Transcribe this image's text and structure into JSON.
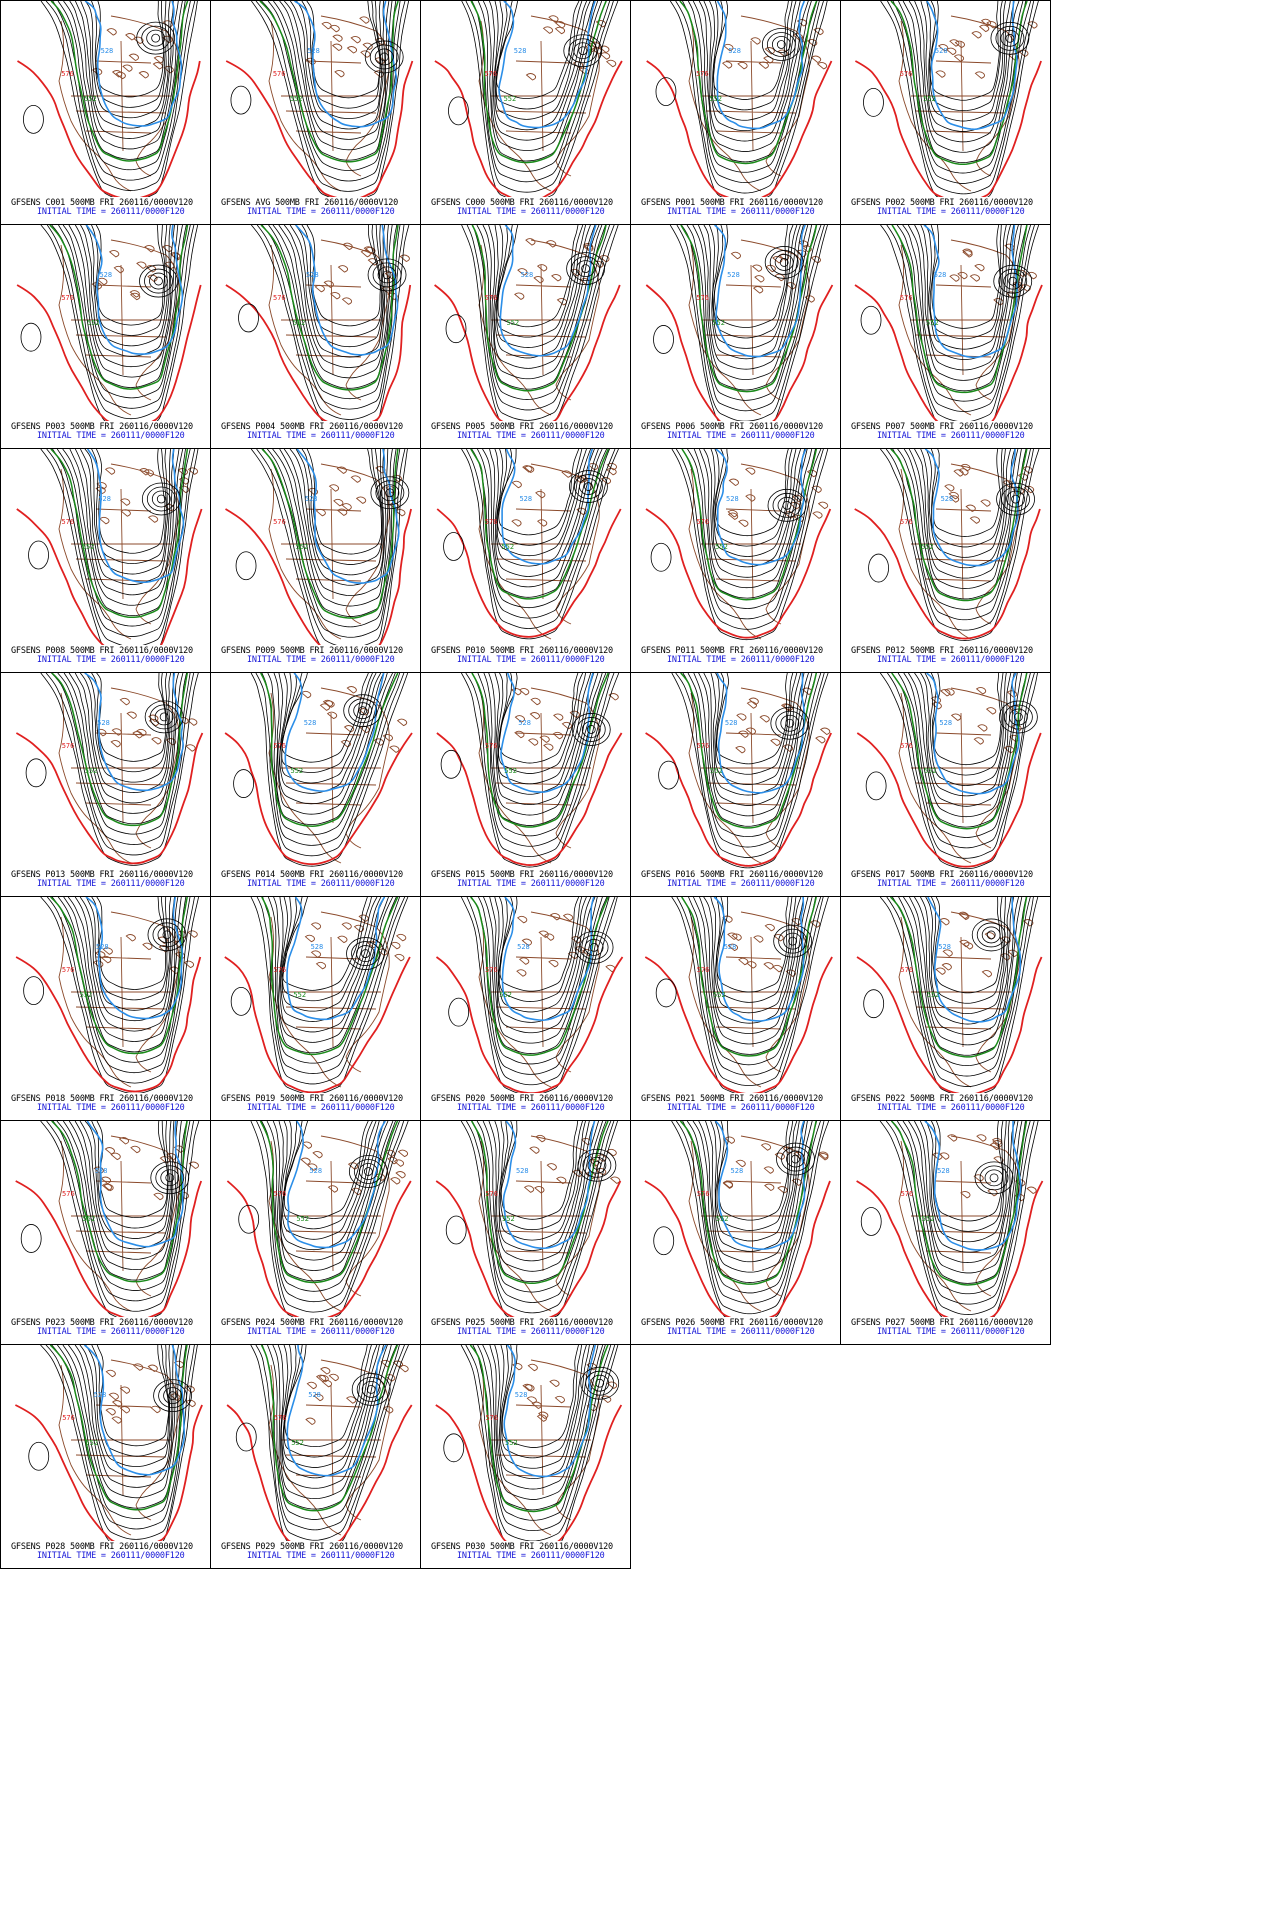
{
  "figure": {
    "columns": 5,
    "rows": 7,
    "init_line": "INITIAL TIME = 260111/0000F120",
    "colors": {
      "height_contours": "#000000",
      "contour_576": "#e02020",
      "contour_552": "#1a8a1a",
      "contour_528": "#2b8ee8",
      "coastlines_borders": "#8b4a2b",
      "caption_line1": "#000000",
      "caption_line2": "#1515d8"
    },
    "contour_labels": [
      "576",
      "552",
      "528"
    ],
    "icons": {
      "map": "map-icon"
    }
  },
  "panels": [
    {
      "id": "C001",
      "title": "GFSENS C001 500MB FRI 260116/0000V120"
    },
    {
      "id": "AVG",
      "title": "GFSENS AVG 500MB FRI 260116/0000V120"
    },
    {
      "id": "C000",
      "title": "GFSENS C000 500MB FRI 260116/0000V120"
    },
    {
      "id": "P001",
      "title": "GFSENS P001 500MB FRI 260116/0000V120"
    },
    {
      "id": "P002",
      "title": "GFSENS P002 500MB FRI 260116/0000V120"
    },
    {
      "id": "P003",
      "title": "GFSENS P003 500MB FRI 260116/0000V120"
    },
    {
      "id": "P004",
      "title": "GFSENS P004 500MB FRI 260116/0000V120"
    },
    {
      "id": "P005",
      "title": "GFSENS P005 500MB FRI 260116/0000V120"
    },
    {
      "id": "P006",
      "title": "GFSENS P006 500MB FRI 260116/0000V120"
    },
    {
      "id": "P007",
      "title": "GFSENS P007 500MB FRI 260116/0000V120"
    },
    {
      "id": "P008",
      "title": "GFSENS P008 500MB FRI 260116/0000V120"
    },
    {
      "id": "P009",
      "title": "GFSENS P009 500MB FRI 260116/0000V120"
    },
    {
      "id": "P010",
      "title": "GFSENS P010 500MB FRI 260116/0000V120"
    },
    {
      "id": "P011",
      "title": "GFSENS P011 500MB FRI 260116/0000V120"
    },
    {
      "id": "P012",
      "title": "GFSENS P012 500MB FRI 260116/0000V120"
    },
    {
      "id": "P013",
      "title": "GFSENS P013 500MB FRI 260116/0000V120"
    },
    {
      "id": "P014",
      "title": "GFSENS P014 500MB FRI 260116/0000V120"
    },
    {
      "id": "P015",
      "title": "GFSENS P015 500MB FRI 260116/0000V120"
    },
    {
      "id": "P016",
      "title": "GFSENS P016 500MB FRI 260116/0000V120"
    },
    {
      "id": "P017",
      "title": "GFSENS P017 500MB FRI 260116/0000V120"
    },
    {
      "id": "P018",
      "title": "GFSENS P018 500MB FRI 260116/0000V120"
    },
    {
      "id": "P019",
      "title": "GFSENS P019 500MB FRI 260116/0000V120"
    },
    {
      "id": "P020",
      "title": "GFSENS P020 500MB FRI 260116/0000V120"
    },
    {
      "id": "P021",
      "title": "GFSENS P021 500MB FRI 260116/0000V120"
    },
    {
      "id": "P022",
      "title": "GFSENS P022 500MB FRI 260116/0000V120"
    },
    {
      "id": "P023",
      "title": "GFSENS P023 500MB FRI 260116/0000V120"
    },
    {
      "id": "P024",
      "title": "GFSENS P024 500MB FRI 260116/0000V120"
    },
    {
      "id": "P025",
      "title": "GFSENS P025 500MB FRI 260116/0000V120"
    },
    {
      "id": "P026",
      "title": "GFSENS P026 500MB FRI 260116/0000V120"
    },
    {
      "id": "P027",
      "title": "GFSENS P027 500MB FRI 260116/0000V120"
    },
    {
      "id": "P028",
      "title": "GFSENS P028 500MB FRI 260116/0000V120"
    },
    {
      "id": "P029",
      "title": "GFSENS P029 500MB FRI 260116/0000V120"
    },
    {
      "id": "P030",
      "title": "GFSENS P030 500MB FRI 260116/0000V120"
    }
  ]
}
